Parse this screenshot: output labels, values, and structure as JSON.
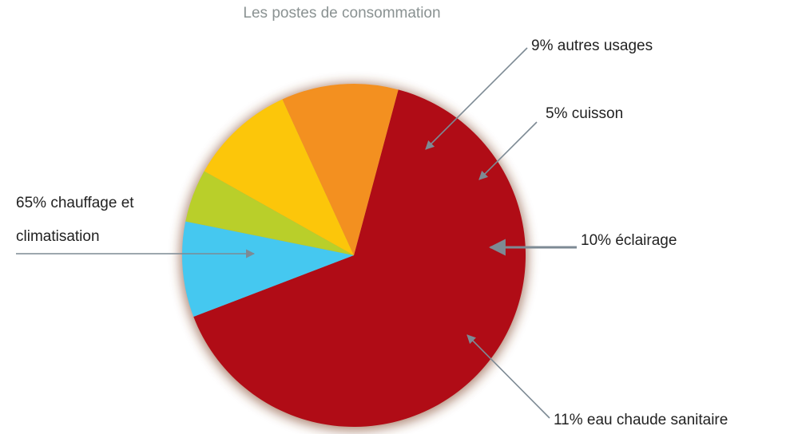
{
  "chart_data": {
    "type": "pie",
    "title": "Les postes de consommation",
    "categories": [
      "chauffage et climatisation",
      "autres usages",
      "cuisson",
      "éclairage",
      "eau chaude sanitaire"
    ],
    "values": [
      65,
      9,
      5,
      10,
      11
    ],
    "value_labels": [
      "65%",
      "9%",
      "5%",
      "10%",
      "11%"
    ],
    "colors": [
      "#b00c16",
      "#45c8f0",
      "#b9cf2a",
      "#fcc60a",
      "#f39020"
    ]
  }
}
